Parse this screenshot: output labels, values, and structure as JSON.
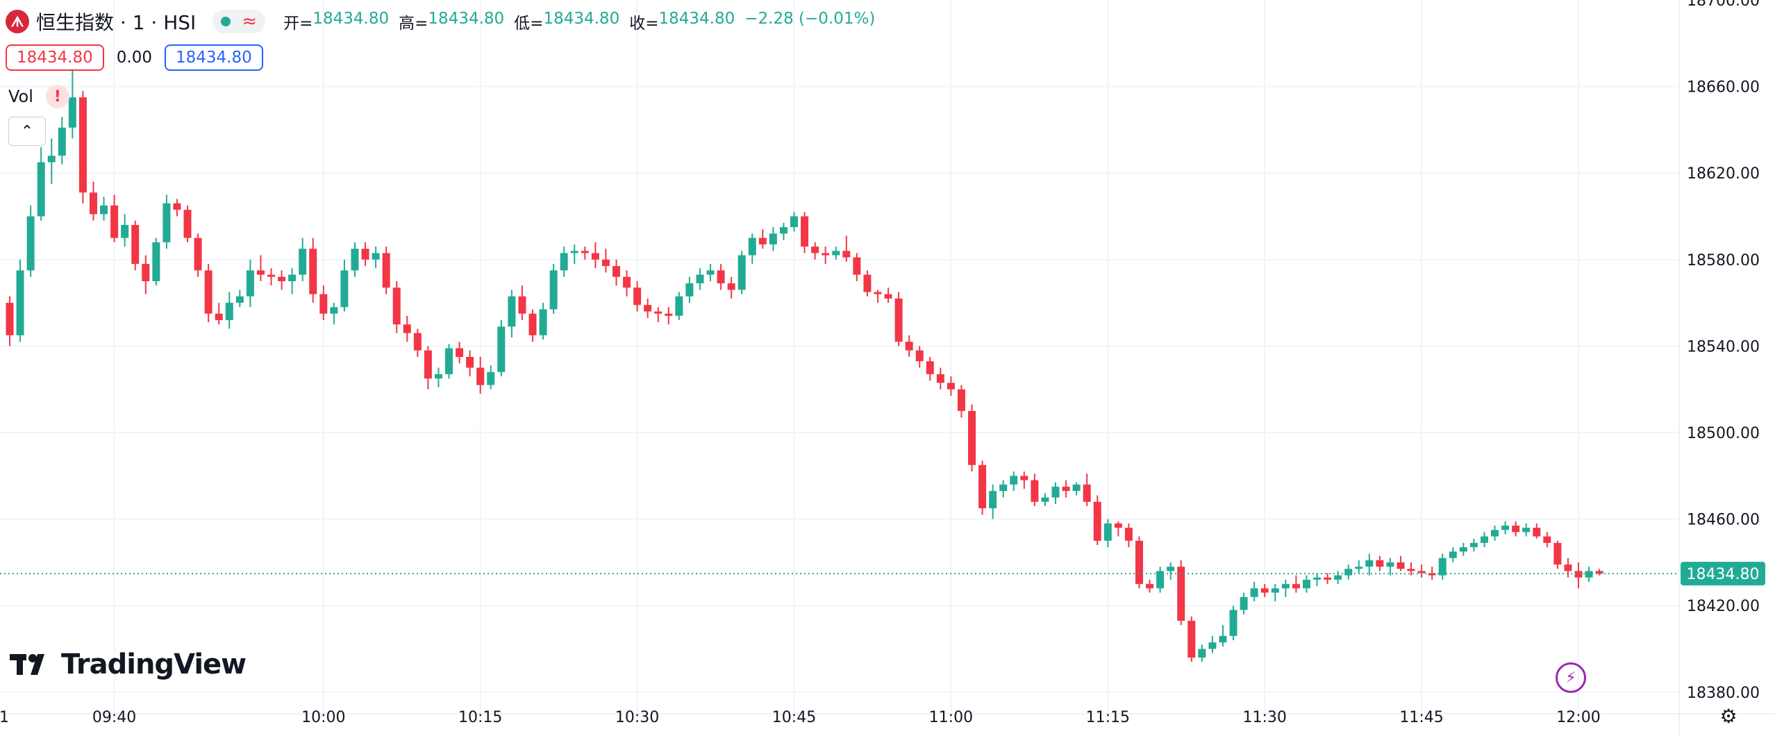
{
  "symbol": {
    "logo_glyph": "ᗑ",
    "title": "恒生指数 · 1 · HSI",
    "status_icon": "market-open-dot",
    "wave_glyph": "≈"
  },
  "ohlc": {
    "open_label": "开=",
    "open": "18434.80",
    "high_label": "高=",
    "high": "18434.80",
    "low_label": "低=",
    "low": "18434.80",
    "close_label": "收=",
    "close": "18434.80",
    "change": "−2.28 (−0.01%)"
  },
  "quote": {
    "sell": "18434.80",
    "spread": "0.00",
    "buy": "18434.80"
  },
  "volume": {
    "label": "Vol",
    "warning_glyph": "!"
  },
  "collapse_glyph": "⌃",
  "brand": {
    "name": "TradingView"
  },
  "bolt_glyph": "⚡",
  "gear_glyph": "⚙",
  "colors": {
    "up": "#22ab94",
    "down": "#f23645",
    "grid": "#f0f3fa",
    "axis_text": "#131722",
    "last_price_bg": "#22ab94"
  },
  "chart_data": {
    "type": "candlestick",
    "timeframe": "1",
    "ylim": [
      18370,
      18700
    ],
    "y_ticks": [
      "18380.00",
      "18420.00",
      "18460.00",
      "18500.00",
      "18540.00",
      "18580.00",
      "18620.00",
      "18660.00",
      "18700.00"
    ],
    "x_tick_labels": [
      "1",
      "09:40",
      "10:00",
      "10:15",
      "10:30",
      "10:45",
      "11:00",
      "11:15",
      "11:30",
      "11:45",
      "12:00"
    ],
    "last_price": "18434.80",
    "grid": true,
    "start_time": "09:30",
    "interval_minutes": 1,
    "ohlc": [
      [
        18560,
        18563,
        18540,
        18545
      ],
      [
        18545,
        18580,
        18542,
        18575
      ],
      [
        18575,
        18605,
        18572,
        18600
      ],
      [
        18600,
        18632,
        18598,
        18625
      ],
      [
        18625,
        18636,
        18615,
        18628
      ],
      [
        18628,
        18646,
        18624,
        18641
      ],
      [
        18641,
        18668,
        18636,
        18655
      ],
      [
        18655,
        18658,
        18606,
        18611
      ],
      [
        18611,
        18616,
        18598,
        18601
      ],
      [
        18601,
        18609,
        18598,
        18605
      ],
      [
        18605,
        18610,
        18588,
        18590
      ],
      [
        18590,
        18601,
        18586,
        18596
      ],
      [
        18596,
        18598,
        18575,
        18578
      ],
      [
        18578,
        18582,
        18564,
        18570
      ],
      [
        18570,
        18590,
        18568,
        18588
      ],
      [
        18588,
        18610,
        18585,
        18606
      ],
      [
        18606,
        18608,
        18600,
        18603
      ],
      [
        18603,
        18605,
        18588,
        18590
      ],
      [
        18590,
        18592,
        18572,
        18575
      ],
      [
        18575,
        18578,
        18551,
        18555
      ],
      [
        18555,
        18560,
        18550,
        18552
      ],
      [
        18552,
        18565,
        18548,
        18560
      ],
      [
        18560,
        18566,
        18558,
        18563
      ],
      [
        18563,
        18580,
        18558,
        18575
      ],
      [
        18575,
        18582,
        18570,
        18573
      ],
      [
        18573,
        18576,
        18568,
        18572
      ],
      [
        18572,
        18575,
        18566,
        18570
      ],
      [
        18570,
        18576,
        18564,
        18573
      ],
      [
        18573,
        18590,
        18570,
        18585
      ],
      [
        18585,
        18590,
        18560,
        18564
      ],
      [
        18564,
        18568,
        18552,
        18555
      ],
      [
        18555,
        18560,
        18550,
        18558
      ],
      [
        18558,
        18580,
        18556,
        18575
      ],
      [
        18575,
        18588,
        18572,
        18585
      ],
      [
        18585,
        18588,
        18577,
        18580
      ],
      [
        18580,
        18586,
        18576,
        18583
      ],
      [
        18583,
        18586,
        18564,
        18567
      ],
      [
        18567,
        18570,
        18546,
        18550
      ],
      [
        18550,
        18554,
        18542,
        18546
      ],
      [
        18546,
        18548,
        18535,
        18538
      ],
      [
        18538,
        18540,
        18520,
        18525
      ],
      [
        18525,
        18530,
        18521,
        18527
      ],
      [
        18527,
        18541,
        18525,
        18539
      ],
      [
        18539,
        18542,
        18532,
        18535
      ],
      [
        18535,
        18538,
        18526,
        18530
      ],
      [
        18530,
        18535,
        18518,
        18522
      ],
      [
        18522,
        18531,
        18520,
        18528
      ],
      [
        18528,
        18552,
        18526,
        18549
      ],
      [
        18549,
        18566,
        18544,
        18563
      ],
      [
        18563,
        18568,
        18552,
        18555
      ],
      [
        18555,
        18557,
        18542,
        18545
      ],
      [
        18545,
        18560,
        18543,
        18557
      ],
      [
        18557,
        18578,
        18555,
        18575
      ],
      [
        18575,
        18586,
        18572,
        18583
      ],
      [
        18583,
        18587,
        18578,
        18584
      ],
      [
        18584,
        18586,
        18580,
        18583
      ],
      [
        18583,
        18588,
        18576,
        18580
      ],
      [
        18580,
        18585,
        18574,
        18577
      ],
      [
        18577,
        18580,
        18568,
        18572
      ],
      [
        18572,
        18575,
        18563,
        18567
      ],
      [
        18567,
        18570,
        18556,
        18559
      ],
      [
        18559,
        18562,
        18553,
        18556
      ],
      [
        18556,
        18558,
        18551,
        18555
      ],
      [
        18555,
        18558,
        18550,
        18554
      ],
      [
        18554,
        18565,
        18552,
        18563
      ],
      [
        18563,
        18572,
        18560,
        18569
      ],
      [
        18569,
        18576,
        18566,
        18573
      ],
      [
        18573,
        18578,
        18570,
        18575
      ],
      [
        18575,
        18578,
        18566,
        18569
      ],
      [
        18569,
        18572,
        18562,
        18566
      ],
      [
        18566,
        18584,
        18564,
        18582
      ],
      [
        18582,
        18592,
        18578,
        18590
      ],
      [
        18590,
        18594,
        18585,
        18587
      ],
      [
        18587,
        18595,
        18584,
        18592
      ],
      [
        18592,
        18597,
        18589,
        18595
      ],
      [
        18595,
        18602,
        18593,
        18600
      ],
      [
        18600,
        18602,
        18583,
        18586
      ],
      [
        18586,
        18588,
        18580,
        18583
      ],
      [
        18583,
        18586,
        18578,
        18582
      ],
      [
        18582,
        18586,
        18580,
        18584
      ],
      [
        18584,
        18591,
        18579,
        18581
      ],
      [
        18581,
        18583,
        18570,
        18573
      ],
      [
        18573,
        18575,
        18563,
        18565
      ],
      [
        18565,
        18566,
        18560,
        18564
      ],
      [
        18564,
        18567,
        18560,
        18562
      ],
      [
        18562,
        18565,
        18540,
        18542
      ],
      [
        18542,
        18545,
        18535,
        18538
      ],
      [
        18538,
        18540,
        18530,
        18533
      ],
      [
        18533,
        18535,
        18524,
        18527
      ],
      [
        18527,
        18530,
        18520,
        18523
      ],
      [
        18523,
        18526,
        18517,
        18520
      ],
      [
        18520,
        18522,
        18507,
        18510
      ],
      [
        18510,
        18513,
        18482,
        18485
      ],
      [
        18485,
        18487,
        18462,
        18465
      ],
      [
        18465,
        18476,
        18460,
        18473
      ],
      [
        18473,
        18478,
        18470,
        18476
      ],
      [
        18476,
        18482,
        18473,
        18480
      ],
      [
        18480,
        18482,
        18474,
        18478
      ],
      [
        18478,
        18481,
        18466,
        18468
      ],
      [
        18468,
        18472,
        18466,
        18470
      ],
      [
        18470,
        18477,
        18467,
        18475
      ],
      [
        18475,
        18478,
        18470,
        18473
      ],
      [
        18473,
        18477,
        18471,
        18476
      ],
      [
        18476,
        18481,
        18466,
        18468
      ],
      [
        18468,
        18471,
        18448,
        18450
      ],
      [
        18450,
        18460,
        18447,
        18458
      ],
      [
        18458,
        18459,
        18452,
        18456
      ],
      [
        18456,
        18458,
        18447,
        18450
      ],
      [
        18450,
        18452,
        18428,
        18430
      ],
      [
        18430,
        18432,
        18426,
        18428
      ],
      [
        18428,
        18438,
        18426,
        18436
      ],
      [
        18436,
        18440,
        18432,
        18438
      ],
      [
        18438,
        18441,
        18411,
        18413
      ],
      [
        18413,
        18415,
        18394,
        18396
      ],
      [
        18396,
        18402,
        18394,
        18400
      ],
      [
        18400,
        18406,
        18398,
        18403
      ],
      [
        18403,
        18411,
        18401,
        18406
      ],
      [
        18406,
        18420,
        18404,
        18418
      ],
      [
        18418,
        18426,
        18416,
        18424
      ],
      [
        18424,
        18431,
        18422,
        18428
      ],
      [
        18428,
        18430,
        18424,
        18426
      ],
      [
        18426,
        18430,
        18422,
        18428
      ],
      [
        18428,
        18432,
        18424,
        18430
      ],
      [
        18430,
        18434,
        18426,
        18428
      ],
      [
        18428,
        18434,
        18426,
        18432
      ],
      [
        18432,
        18435,
        18429,
        18433
      ],
      [
        18433,
        18435,
        18430,
        18432
      ],
      [
        18432,
        18436,
        18430,
        18434
      ],
      [
        18434,
        18439,
        18432,
        18437
      ],
      [
        18437,
        18441,
        18435,
        18438
      ],
      [
        18438,
        18444,
        18434,
        18441
      ],
      [
        18441,
        18443,
        18436,
        18438
      ],
      [
        18438,
        18442,
        18434,
        18440
      ],
      [
        18440,
        18443,
        18436,
        18437
      ],
      [
        18437,
        18440,
        18434,
        18436
      ],
      [
        18436,
        18439,
        18433,
        18435
      ],
      [
        18435,
        18438,
        18432,
        18434
      ],
      [
        18434,
        18444,
        18432,
        18442
      ],
      [
        18442,
        18447,
        18440,
        18445
      ],
      [
        18445,
        18449,
        18443,
        18447
      ],
      [
        18447,
        18451,
        18445,
        18449
      ],
      [
        18449,
        18454,
        18447,
        18452
      ],
      [
        18452,
        18457,
        18450,
        18455
      ],
      [
        18455,
        18459,
        18453,
        18457
      ],
      [
        18457,
        18459,
        18452,
        18454
      ],
      [
        18454,
        18458,
        18452,
        18456
      ],
      [
        18456,
        18458,
        18451,
        18452
      ],
      [
        18452,
        18454,
        18447,
        18449
      ],
      [
        18449,
        18450,
        18437,
        18439
      ],
      [
        18439,
        18442,
        18433,
        18436
      ],
      [
        18436,
        18440,
        18428,
        18433
      ],
      [
        18433,
        18438,
        18431,
        18436
      ],
      [
        18436,
        18437,
        18434,
        18434.8
      ]
    ]
  }
}
